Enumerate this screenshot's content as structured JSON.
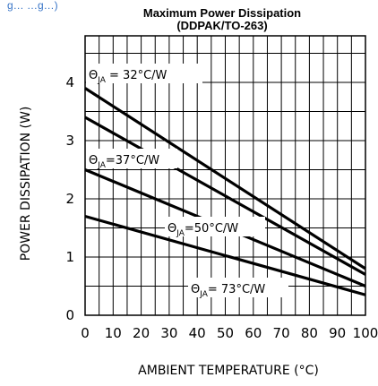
{
  "chart_data": {
    "type": "line",
    "title": "Maximum Power Dissipation",
    "subtitle": "(DDPAK/TO-263)",
    "xlabel": "AMBIENT TEMPERATURE (°C)",
    "ylabel": "POWER DISSIPATION (W)",
    "xlim": [
      0,
      100
    ],
    "ylim": [
      0,
      4.8
    ],
    "x_ticks": [
      0,
      10,
      20,
      30,
      40,
      50,
      60,
      70,
      80,
      90,
      100
    ],
    "y_ticks": [
      0,
      1,
      2,
      3,
      4
    ],
    "grid": true,
    "series": [
      {
        "name": "ΘJA = 32°C/W",
        "x": [
          0,
          100
        ],
        "y": [
          3.9,
          0.8
        ],
        "label_base": "Θ",
        "label_sub": "JA",
        "label_rest": " = 32°C/W"
      },
      {
        "name": "ΘJA = 37°C/W",
        "x": [
          0,
          100
        ],
        "y": [
          3.4,
          0.7
        ],
        "label_base": "Θ",
        "label_sub": "JA",
        "label_rest": "=37°C/W"
      },
      {
        "name": "ΘJA = 50°C/W",
        "x": [
          0,
          100
        ],
        "y": [
          2.5,
          0.5
        ],
        "label_base": "Θ",
        "label_sub": "JA",
        "label_rest": "=50°C/W"
      },
      {
        "name": "ΘJA = 73°C/W",
        "x": [
          0,
          100
        ],
        "y": [
          1.7,
          0.35
        ],
        "label_base": "Θ",
        "label_sub": "JA",
        "label_rest": "= 73°C/W"
      }
    ]
  },
  "header_link_fragment": "g… …g…)"
}
